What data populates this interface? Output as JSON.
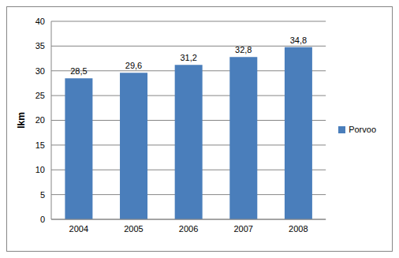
{
  "chart_data": {
    "type": "bar",
    "y_label": "lkm",
    "categories": [
      "2004",
      "2005",
      "2006",
      "2007",
      "2008"
    ],
    "series": [
      {
        "name": "Porvoo",
        "color": "#4a7ebb",
        "values": [
          28.5,
          29.6,
          31.2,
          32.8,
          34.8
        ],
        "value_labels": [
          "28,5",
          "29,6",
          "31,2",
          "32,8",
          "34,8"
        ]
      }
    ],
    "ylim": [
      0,
      40
    ],
    "yticks": [
      0,
      5,
      10,
      15,
      20,
      25,
      30,
      35,
      40
    ],
    "grid": true,
    "legend": "right",
    "data_labels": true
  }
}
